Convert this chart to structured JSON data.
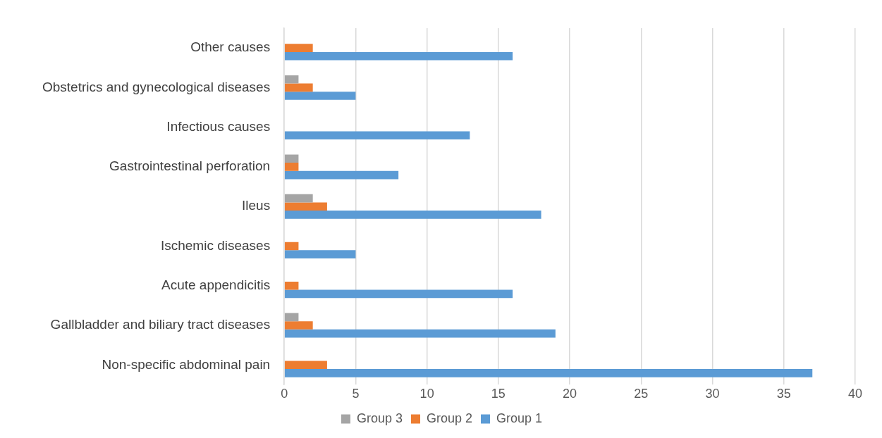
{
  "chart_data": {
    "type": "bar",
    "orientation": "horizontal",
    "categories": [
      "Other causes",
      "Obstetrics and gynecological diseases",
      "Infectious causes",
      "Gastrointestinal perforation",
      "Ileus",
      "Ischemic diseases",
      "Acute appendicitis",
      "Gallbladder and biliary tract diseases",
      "Non-specific abdominal pain"
    ],
    "series": [
      {
        "name": "Group 3",
        "color": "#a5a5a5",
        "values": [
          0,
          1,
          0,
          1,
          2,
          0,
          0,
          1,
          0
        ]
      },
      {
        "name": "Group 2",
        "color": "#ed7d31",
        "values": [
          2,
          2,
          0,
          1,
          3,
          1,
          1,
          2,
          3
        ]
      },
      {
        "name": "Group 1",
        "color": "#5b9bd5",
        "values": [
          16,
          5,
          13,
          8,
          18,
          5,
          16,
          19,
          37
        ]
      }
    ],
    "xlim": [
      0,
      40
    ],
    "xticks": [
      0,
      5,
      10,
      15,
      20,
      25,
      30,
      35,
      40
    ],
    "grid": "x",
    "legend": "bottom"
  }
}
